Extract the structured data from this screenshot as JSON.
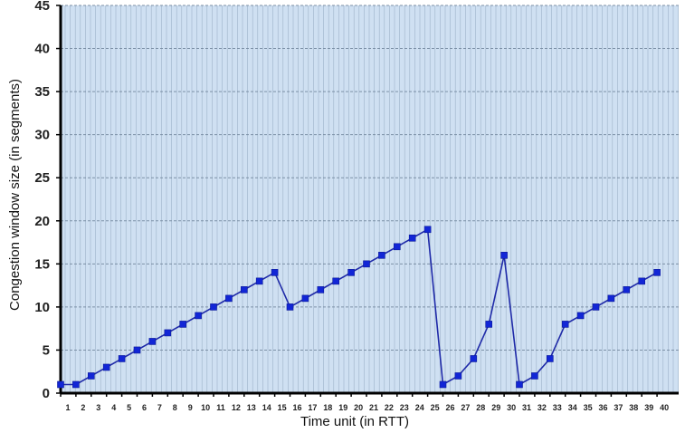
{
  "chart_data": {
    "type": "line",
    "title": "",
    "xlabel": "Time unit (in RTT)",
    "ylabel": "Congestion window size (in segments)",
    "ylim": [
      0,
      45
    ],
    "xlim": [
      1,
      40
    ],
    "yticks": [
      0,
      5,
      10,
      15,
      20,
      25,
      30,
      35,
      40,
      45
    ],
    "xticks": [
      1,
      2,
      3,
      4,
      5,
      6,
      7,
      8,
      9,
      10,
      11,
      12,
      13,
      14,
      15,
      16,
      17,
      18,
      19,
      20,
      21,
      22,
      23,
      24,
      25,
      26,
      27,
      28,
      29,
      30,
      31,
      32,
      33,
      34,
      35,
      36,
      37,
      38,
      39,
      40
    ],
    "grid": true,
    "series": [
      {
        "x": [
          1,
          2,
          3,
          4,
          5,
          6,
          7,
          8,
          9,
          10,
          11,
          12,
          13,
          14,
          15,
          16,
          17,
          18,
          19,
          20,
          21,
          22,
          23,
          24,
          25,
          26,
          27,
          28,
          29,
          30,
          31,
          32,
          33,
          34,
          35,
          36,
          37,
          38,
          39,
          40
        ],
        "values": [
          1,
          1,
          2,
          3,
          4,
          5,
          6,
          7,
          8,
          9,
          10,
          11,
          12,
          13,
          14,
          10,
          11,
          12,
          13,
          14,
          15,
          16,
          17,
          18,
          19,
          1,
          2,
          4,
          8,
          16,
          1,
          2,
          4,
          8,
          9,
          10,
          11,
          12,
          13,
          14
        ]
      }
    ],
    "colors": {
      "plot_bg": "#cfe0f2",
      "grid_major": "#7c90a6",
      "grid_minor": "#9db2c8",
      "line": "#1f2aa8",
      "marker": "#1226d6",
      "axis": "#000000"
    }
  }
}
